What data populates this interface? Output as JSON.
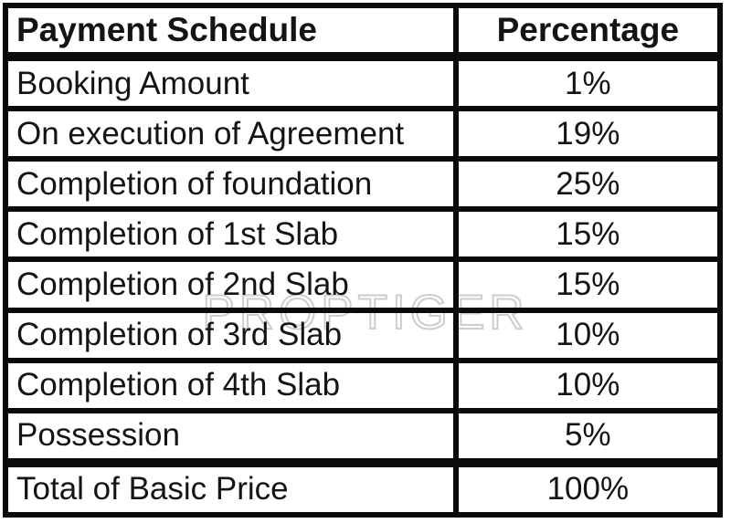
{
  "chart_data": {
    "type": "table",
    "title": "Payment Schedule",
    "columns": [
      "Payment Schedule",
      "Percentage"
    ],
    "rows": [
      [
        "Booking Amount",
        "1%"
      ],
      [
        "On execution of Agreement",
        "19%"
      ],
      [
        "Completion of foundation",
        "25%"
      ],
      [
        "Completion of 1st Slab",
        "15%"
      ],
      [
        "Completion of 2nd Slab",
        "15%"
      ],
      [
        "Completion of 3rd Slab",
        "10%"
      ],
      [
        "Completion of 4th Slab",
        "10%"
      ],
      [
        "Possession",
        "5%"
      ]
    ],
    "total_row": [
      "Total of Basic Price",
      "100%"
    ]
  },
  "watermark": {
    "text": "PROPTIGER",
    "color": "#cdcdcd"
  },
  "colors": {
    "border": "#0b0b0b",
    "text": "#141414",
    "background": "#ffffff"
  }
}
